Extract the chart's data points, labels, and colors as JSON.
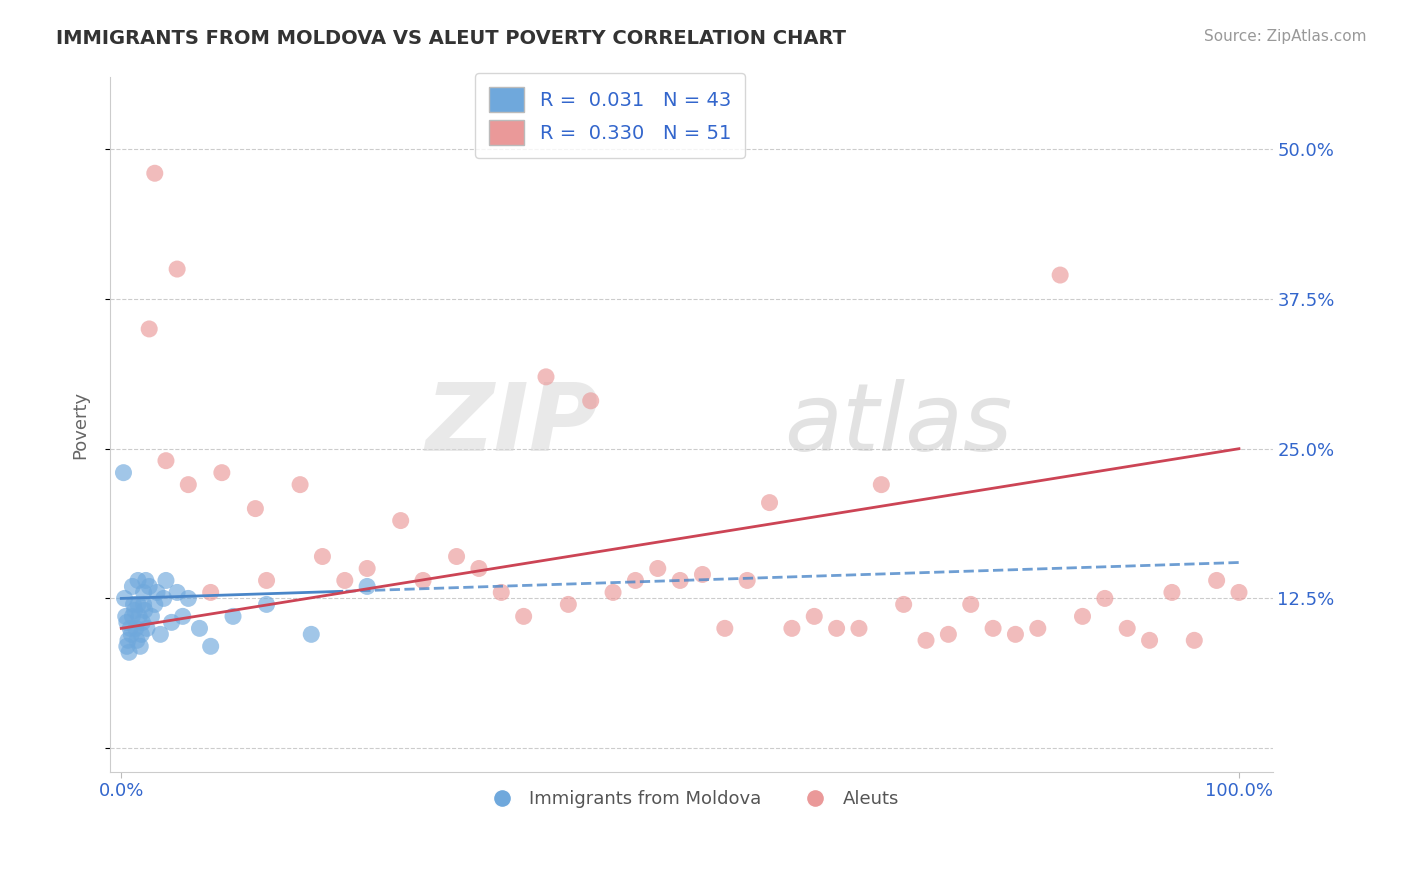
{
  "title": "IMMIGRANTS FROM MOLDOVA VS ALEUT POVERTY CORRELATION CHART",
  "source": "Source: ZipAtlas.com",
  "ylabel": "Poverty",
  "ytick_values": [
    0,
    12.5,
    25.0,
    37.5,
    50.0
  ],
  "ytick_labels": [
    "",
    "12.5%",
    "25.0%",
    "37.5%",
    "50.0%"
  ],
  "xtick_labels": [
    "0.0%",
    "100.0%"
  ],
  "color_blue": "#6fa8dc",
  "color_pink": "#ea9999",
  "color_blue_line": "#4a86c8",
  "color_pink_line": "#cc4455",
  "legend_text_color": "#3366cc",
  "axis_color": "#3366cc",
  "grid_color": "#cccccc",
  "title_color": "#333333",
  "source_color": "#999999",
  "ylabel_color": "#666666",
  "blue_r": "0.031",
  "blue_n": "43",
  "pink_r": "0.330",
  "pink_n": "51",
  "blue_scatter_x": [
    0.2,
    0.3,
    0.4,
    0.5,
    0.5,
    0.6,
    0.7,
    0.8,
    0.9,
    1.0,
    1.0,
    1.1,
    1.2,
    1.3,
    1.4,
    1.5,
    1.5,
    1.6,
    1.7,
    1.8,
    1.9,
    2.0,
    2.0,
    2.1,
    2.2,
    2.3,
    2.5,
    2.7,
    3.0,
    3.2,
    3.5,
    3.8,
    4.0,
    4.5,
    5.0,
    5.5,
    6.0,
    7.0,
    8.0,
    10.0,
    13.0,
    17.0,
    22.0
  ],
  "blue_scatter_y": [
    23.0,
    12.5,
    11.0,
    10.5,
    8.5,
    9.0,
    8.0,
    10.0,
    9.5,
    13.5,
    11.0,
    12.0,
    11.5,
    10.0,
    9.0,
    12.0,
    14.0,
    11.0,
    8.5,
    9.5,
    10.5,
    13.0,
    12.0,
    11.5,
    14.0,
    10.0,
    13.5,
    11.0,
    12.0,
    13.0,
    9.5,
    12.5,
    14.0,
    10.5,
    13.0,
    11.0,
    12.5,
    10.0,
    8.5,
    11.0,
    12.0,
    9.5,
    13.5
  ],
  "pink_scatter_x": [
    2.5,
    4.0,
    6.0,
    9.0,
    12.0,
    13.0,
    16.0,
    18.0,
    20.0,
    22.0,
    25.0,
    27.0,
    30.0,
    32.0,
    34.0,
    36.0,
    38.0,
    40.0,
    42.0,
    44.0,
    46.0,
    48.0,
    50.0,
    52.0,
    54.0,
    56.0,
    58.0,
    60.0,
    62.0,
    64.0,
    66.0,
    68.0,
    70.0,
    72.0,
    74.0,
    76.0,
    78.0,
    80.0,
    82.0,
    84.0,
    86.0,
    88.0,
    90.0,
    92.0,
    94.0,
    96.0,
    98.0,
    3.0,
    5.0,
    8.0,
    100.0
  ],
  "pink_scatter_y": [
    35.0,
    24.0,
    22.0,
    23.0,
    20.0,
    14.0,
    22.0,
    16.0,
    14.0,
    15.0,
    19.0,
    14.0,
    16.0,
    15.0,
    13.0,
    11.0,
    31.0,
    12.0,
    29.0,
    13.0,
    14.0,
    15.0,
    14.0,
    14.5,
    10.0,
    14.0,
    20.5,
    10.0,
    11.0,
    10.0,
    10.0,
    22.0,
    12.0,
    9.0,
    9.5,
    12.0,
    10.0,
    9.5,
    10.0,
    39.5,
    11.0,
    12.5,
    10.0,
    9.0,
    13.0,
    9.0,
    14.0,
    48.0,
    40.0,
    13.0,
    13.0
  ]
}
